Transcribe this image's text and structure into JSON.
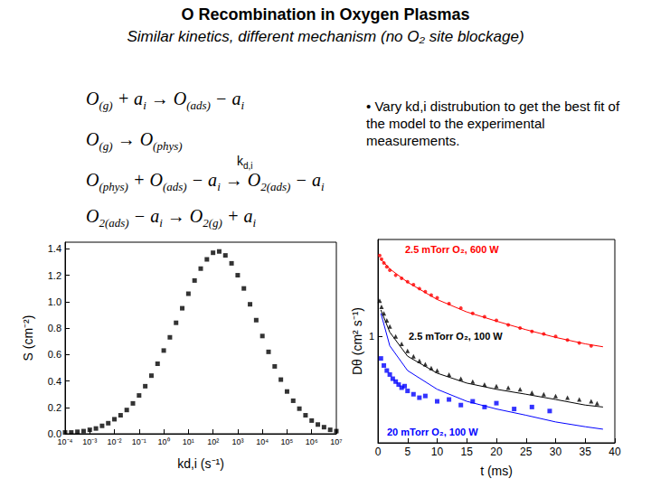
{
  "title": "O Recombination in Oxygen Plasmas",
  "subtitle": "Similar kinetics, different mechanism (no O₂ site blockage)",
  "equations": [
    [
      "O",
      {
        "sub": "(g)"
      },
      " + a",
      {
        "sub": "i"
      },
      " → O",
      {
        "sub": "(ads)"
      },
      " − a",
      {
        "sub": "i"
      }
    ],
    [
      "O",
      {
        "sub": "(g)"
      },
      " → O",
      {
        "sub": "(phys)"
      }
    ],
    [
      "O",
      {
        "sub": "(phys)"
      },
      " + O",
      {
        "sub": "(ads)"
      },
      " − a",
      {
        "sub": "i"
      },
      " → O",
      {
        "sub": "2(ads)"
      },
      " − a",
      {
        "sub": "i"
      }
    ],
    [
      "O",
      {
        "sub": "2(ads)"
      },
      " − a",
      {
        "sub": "i"
      },
      " → O",
      {
        "sub": "2(g)"
      },
      " + a",
      {
        "sub": "i"
      }
    ]
  ],
  "rate_label": [
    "k",
    {
      "sub": "d,i"
    }
  ],
  "note": "• Vary kd,i distrubution to get the best fit of the model to the experimental measurements.",
  "chart_data": [
    {
      "type": "scatter",
      "xlabel": "kd,i (s⁻¹)",
      "ylabel": "S (cm⁻²)",
      "log": "x",
      "xlim": [
        0.0001,
        10000000
      ],
      "xticks": [
        {
          "value": 0.0001,
          "label": "10⁻⁴"
        },
        {
          "value": 0.001,
          "label": "10⁻³"
        },
        {
          "value": 0.01,
          "label": "10⁻²"
        },
        {
          "value": 0.1,
          "label": "10⁻¹"
        },
        {
          "value": 1,
          "label": "10⁰"
        },
        {
          "value": 10,
          "label": "10¹"
        },
        {
          "value": 100,
          "label": "10²"
        },
        {
          "value": 1000,
          "label": "10³"
        },
        {
          "value": 10000,
          "label": "10⁴"
        },
        {
          "value": 100000,
          "label": "10⁵"
        },
        {
          "value": 1000000,
          "label": "10⁶"
        },
        {
          "value": 10000000,
          "label": "10⁷"
        }
      ],
      "ylim": [
        0,
        1.45
      ],
      "yticks": [
        {
          "value": 0,
          "label": "0.0"
        },
        0.2,
        0.4,
        0.6,
        0.8,
        {
          "value": 1,
          "label": "1.0"
        },
        1.2,
        1.4
      ],
      "grid": false,
      "series": [
        {
          "type": "scatter",
          "color": "#000000",
          "marker": "square",
          "x": [
            0.0001,
            0.0001778,
            0.0003162,
            0.0005623,
            0.001,
            0.001778,
            0.003162,
            0.005623,
            0.01,
            0.01778,
            0.03162,
            0.05623,
            0.1,
            0.1778,
            0.3162,
            0.5623,
            1,
            1.778,
            3.162,
            5.623,
            10,
            17.78,
            31.62,
            56.23,
            100,
            177.8,
            316.2,
            562.3,
            1000,
            1778,
            3162,
            5623,
            10000,
            17780,
            31620,
            56230,
            100000,
            177800,
            316200,
            562300,
            1000000,
            1778000,
            3162000,
            5623000,
            10000000
          ],
          "values": [
            0.01,
            0.01,
            0.015,
            0.02,
            0.03,
            0.04,
            0.06,
            0.08,
            0.11,
            0.14,
            0.18,
            0.23,
            0.29,
            0.36,
            0.44,
            0.53,
            0.63,
            0.73,
            0.84,
            0.95,
            1.06,
            1.16,
            1.25,
            1.32,
            1.37,
            1.38,
            1.35,
            1.29,
            1.2,
            1.1,
            0.98,
            0.86,
            0.74,
            0.62,
            0.51,
            0.41,
            0.32,
            0.25,
            0.19,
            0.14,
            0.1,
            0.07,
            0.05,
            0.03,
            0.02
          ]
        }
      ]
    },
    {
      "type": "scatter",
      "xlabel": "t (ms)",
      "ylabel": "Dθ (cm² s⁻¹)",
      "log": "y",
      "xlim": [
        0,
        40
      ],
      "xticks": [
        0,
        5,
        10,
        15,
        20,
        25,
        30,
        35,
        40
      ],
      "ylim": [
        0.3,
        3
      ],
      "yticks": [
        1
      ],
      "grid": false,
      "series": [
        {
          "type": "scatter",
          "name": "2.5 mTorr O₂, 600 W",
          "color": "#ff0000",
          "marker": "circle",
          "x": [
            0.3,
            0.6,
            1,
            1.5,
            2,
            3,
            4,
            5,
            6,
            7,
            8,
            9,
            10,
            12,
            14,
            16,
            18,
            20,
            22,
            24,
            26,
            28,
            30,
            32,
            34,
            36
          ],
          "values": [
            2.5,
            2.4,
            2.3,
            2.2,
            2.12,
            2.0,
            1.93,
            1.86,
            1.8,
            1.72,
            1.66,
            1.6,
            1.55,
            1.45,
            1.38,
            1.3,
            1.25,
            1.2,
            1.14,
            1.1,
            1.06,
            1.03,
            1.0,
            0.96,
            0.93,
            0.9
          ]
        },
        {
          "type": "line",
          "color": "#ff0000",
          "marker": "none",
          "line_style": "solid",
          "x": [
            0.5,
            2,
            5,
            10,
            15,
            20,
            25,
            30,
            35,
            38
          ],
          "values": [
            2.4,
            2.15,
            1.85,
            1.52,
            1.32,
            1.19,
            1.08,
            0.99,
            0.92,
            0.89
          ]
        },
        {
          "type": "scatter",
          "name": "2.5 mTorr O₂, 100 W",
          "color": "#000000",
          "marker": "triangle",
          "x": [
            0.3,
            0.6,
            1,
            1.5,
            2,
            3,
            4,
            5,
            6,
            7,
            8,
            9,
            10,
            12,
            14,
            16,
            18,
            20,
            22,
            24,
            26,
            28,
            30,
            32,
            34,
            36,
            37
          ],
          "values": [
            1.5,
            1.4,
            1.3,
            1.2,
            1.12,
            1.0,
            0.92,
            0.85,
            0.8,
            0.76,
            0.73,
            0.7,
            0.68,
            0.65,
            0.62,
            0.6,
            0.58,
            0.57,
            0.56,
            0.55,
            0.53,
            0.52,
            0.51,
            0.5,
            0.49,
            0.48,
            0.47
          ]
        },
        {
          "type": "line",
          "color": "#000000",
          "marker": "none",
          "line_style": "solid",
          "x": [
            0.5,
            2,
            5,
            10,
            15,
            20,
            25,
            30,
            35,
            38
          ],
          "values": [
            1.35,
            1.05,
            0.8,
            0.66,
            0.59,
            0.55,
            0.52,
            0.49,
            0.46,
            0.45
          ]
        },
        {
          "type": "scatter",
          "name": "20 mTorr O₂, 100 W",
          "color": "#0000ff",
          "marker": "square",
          "x": [
            0.5,
            1,
            1.5,
            2,
            2.5,
            3,
            3.5,
            4,
            4.5,
            5,
            6,
            7,
            8,
            10,
            12,
            14,
            16,
            18,
            20,
            23,
            26,
            29
          ],
          "values": [
            0.78,
            0.72,
            0.68,
            0.65,
            0.62,
            0.6,
            0.58,
            0.56,
            0.57,
            0.54,
            0.52,
            0.5,
            0.51,
            0.48,
            0.49,
            0.46,
            0.48,
            0.45,
            0.47,
            0.44,
            0.45,
            0.43
          ]
        },
        {
          "type": "line",
          "color": "#0000ff",
          "marker": "none",
          "line_style": "solid",
          "x": [
            0.5,
            2,
            5,
            10,
            15,
            20,
            25,
            30,
            35,
            38
          ],
          "values": [
            1.3,
            0.9,
            0.68,
            0.55,
            0.48,
            0.44,
            0.41,
            0.38,
            0.36,
            0.35
          ]
        }
      ]
    }
  ]
}
